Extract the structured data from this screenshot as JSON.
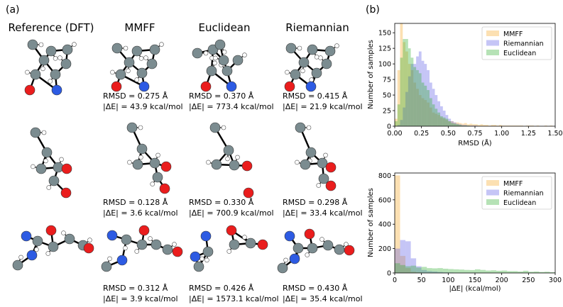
{
  "panel_a": {
    "label": "(a)",
    "columns": [
      "Reference (DFT)",
      "MMFF",
      "Euclidean",
      "Riemannian"
    ],
    "atom_colors": {
      "carbon": "#7b8c90",
      "nitrogen": "#2d5be3",
      "oxygen": "#ea1d1d",
      "hydrogen": "#ffffff"
    },
    "rows": [
      {
        "results": [
          {
            "rmsd": "RMSD = 0.275 Å",
            "energy": "|ΔE| = 43.9 kcal/mol"
          },
          {
            "rmsd": "RMSD = 0.370 Å",
            "energy": "|ΔE| = 773.4 kcal/mol"
          },
          {
            "rmsd": "RMSD = 0.415 Å",
            "energy": "|ΔE| = 21.9 kcal/mol"
          }
        ]
      },
      {
        "results": [
          {
            "rmsd": "RMSD = 0.128 Å",
            "energy": "|ΔE| = 3.6 kcal/mol"
          },
          {
            "rmsd": "RMSD = 0.330 Å",
            "energy": "|ΔE| = 700.9 kcal/mol"
          },
          {
            "rmsd": "RMSD = 0.298 Å",
            "energy": "|ΔE| = 33.4 kcal/mol"
          }
        ]
      },
      {
        "results": [
          {
            "rmsd": "RMSD = 0.312 Å",
            "energy": "|ΔE| = 3.9 kcal/mol"
          },
          {
            "rmsd": "RMSD = 0.426 Å",
            "energy": "|ΔE| = 1573.1 kcal/mol"
          },
          {
            "rmsd": "RMSD = 0.430 Å",
            "energy": "|ΔE| = 35.4 kcal/mol"
          }
        ]
      }
    ]
  },
  "panel_b": {
    "label": "(b)"
  },
  "chart_data": [
    {
      "type": "histogram",
      "xlabel": "RMSD (Å)",
      "ylabel": "Number of samples",
      "xlim": [
        0,
        1.5
      ],
      "ylim": [
        0,
        165
      ],
      "xticks": [
        "0.00",
        "0.25",
        "0.50",
        "0.75",
        "1.00",
        "1.25",
        "1.50"
      ],
      "xtick_values": [
        0,
        0.25,
        0.5,
        0.75,
        1.0,
        1.25,
        1.5
      ],
      "yticks": [
        "0",
        "25",
        "50",
        "75",
        "100",
        "125",
        "150"
      ],
      "ytick_values": [
        0,
        25,
        50,
        75,
        100,
        125,
        150
      ],
      "legend": "top-right",
      "bin_width": 0.025,
      "series": [
        {
          "name": "MMFF",
          "color": "#f5a623",
          "values": [
            12,
            90,
            165,
            135,
            120,
            100,
            90,
            70,
            60,
            50,
            45,
            42,
            38,
            30,
            22,
            20,
            18,
            14,
            12,
            10,
            8,
            8,
            6,
            6,
            5,
            4,
            5,
            3,
            4,
            3,
            3,
            2,
            3,
            2,
            2,
            1,
            2,
            2,
            1,
            2,
            1,
            1,
            1,
            1,
            1,
            1,
            1,
            1,
            0,
            1,
            1,
            1,
            0,
            1,
            0,
            0,
            1,
            0,
            1,
            0
          ]
        },
        {
          "name": "Riemannian",
          "color": "#5a5ae6",
          "values": [
            0,
            2,
            10,
            30,
            55,
            80,
            100,
            100,
            112,
            120,
            105,
            100,
            90,
            70,
            60,
            50,
            40,
            32,
            25,
            18,
            12,
            8,
            6,
            4,
            3,
            2,
            2,
            1,
            1,
            1,
            1,
            0,
            0,
            0,
            0,
            0,
            0,
            0,
            0,
            0,
            0,
            0,
            0,
            0,
            0,
            0,
            0,
            0,
            0,
            0,
            0,
            0,
            0,
            0,
            0,
            0,
            0,
            0,
            0,
            0
          ]
        },
        {
          "name": "Euclidean",
          "color": "#2eab2e",
          "values": [
            8,
            35,
            110,
            140,
            140,
            125,
            110,
            95,
            90,
            85,
            70,
            65,
            58,
            45,
            35,
            28,
            22,
            16,
            14,
            12,
            8,
            5,
            4,
            3,
            2,
            1,
            1,
            1,
            0,
            0,
            0,
            0,
            0,
            0,
            0,
            0,
            0,
            0,
            0,
            0,
            0,
            0,
            0,
            0,
            0,
            0,
            0,
            0,
            0,
            0,
            0,
            0,
            0,
            0,
            0,
            0,
            0,
            0,
            0,
            0
          ]
        }
      ]
    },
    {
      "type": "histogram",
      "xlabel": "|ΔE| (kcal/mol)",
      "ylabel": "Number of samples",
      "xlim": [
        0,
        300
      ],
      "ylim": [
        0,
        820
      ],
      "xticks": [
        "0",
        "50",
        "100",
        "150",
        "200",
        "250",
        "300"
      ],
      "xtick_values": [
        0,
        50,
        100,
        150,
        200,
        250,
        300
      ],
      "yticks": [
        "0",
        "200",
        "400",
        "600",
        "800"
      ],
      "ytick_values": [
        0,
        200,
        400,
        600,
        800
      ],
      "legend": "top-right",
      "bin_width": 10,
      "series": [
        {
          "name": "MMFF",
          "color": "#f5a623",
          "values": [
            800,
            140,
            40,
            10,
            5,
            0,
            0,
            0,
            0,
            0,
            0,
            0,
            0,
            0,
            0,
            0,
            0,
            0,
            0,
            0,
            0,
            0,
            0,
            0,
            0,
            0,
            0,
            0,
            0,
            0
          ]
        },
        {
          "name": "Riemannian",
          "color": "#5a5ae6",
          "values": [
            200,
            270,
            260,
            120,
            55,
            25,
            15,
            12,
            8,
            5,
            4,
            3,
            2,
            2,
            1,
            1,
            1,
            1,
            0,
            0,
            0,
            0,
            0,
            0,
            0,
            0,
            0,
            0,
            0,
            0
          ]
        },
        {
          "name": "Euclidean",
          "color": "#2eab2e",
          "values": [
            80,
            65,
            55,
            60,
            45,
            50,
            40,
            38,
            40,
            35,
            32,
            30,
            28,
            25,
            24,
            30,
            25,
            20,
            22,
            18,
            20,
            15,
            15,
            12,
            18,
            10,
            12,
            8,
            10,
            6
          ]
        }
      ]
    }
  ]
}
